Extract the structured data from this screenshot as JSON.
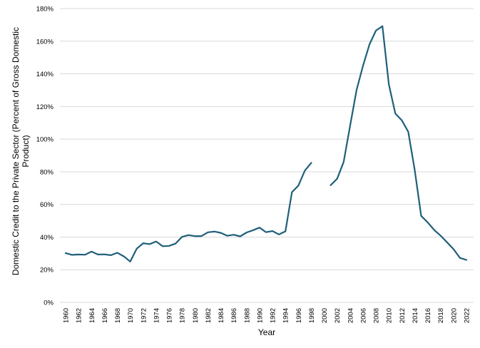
{
  "chart_data": {
    "type": "line",
    "title": "",
    "xlabel": "Year",
    "ylabel": "Domestic Credit to the Private Sector (Percent of Gross Domestic Product)",
    "xlim": [
      1960,
      2022
    ],
    "ylim": [
      0,
      180
    ],
    "ytick_values": [
      0,
      20,
      40,
      60,
      80,
      100,
      120,
      140,
      160,
      180
    ],
    "ytick_labels": [
      "0%",
      "20%",
      "40%",
      "60%",
      "80%",
      "100%",
      "120%",
      "140%",
      "160%",
      "180%"
    ],
    "xtick_values": [
      1960,
      1962,
      1964,
      1966,
      1968,
      1970,
      1972,
      1974,
      1976,
      1978,
      1980,
      1982,
      1984,
      1986,
      1988,
      1990,
      1992,
      1994,
      1996,
      1998,
      2000,
      2002,
      2004,
      2006,
      2008,
      2010,
      2012,
      2014,
      2016,
      2018,
      2020,
      2022
    ],
    "xtick_labels": [
      "1960",
      "1962",
      "1964",
      "1966",
      "1968",
      "1970",
      "1972",
      "1974",
      "1976",
      "1978",
      "1980",
      "1982",
      "1984",
      "1986",
      "1988",
      "1990",
      "1992",
      "1994",
      "1996",
      "1998",
      "2000",
      "2002",
      "2004",
      "2006",
      "2008",
      "2010",
      "2012",
      "2014",
      "2016",
      "2018",
      "2020",
      "2022"
    ],
    "grid": true,
    "legend": "none",
    "series": [
      {
        "color": "#1f5f7a",
        "x": [
          1960,
          1961,
          1962,
          1963,
          1964,
          1965,
          1966,
          1967,
          1968,
          1969,
          1970,
          1971,
          1972,
          1973,
          1974,
          1975,
          1976,
          1977,
          1978,
          1979,
          1980,
          1981,
          1982,
          1983,
          1984,
          1985,
          1986,
          1987,
          1988,
          1989,
          1990,
          1991,
          1992,
          1993,
          1994,
          1995,
          1996,
          1997,
          1998,
          1999,
          2000,
          2001,
          2002,
          2003,
          2004,
          2005,
          2006,
          2007,
          2008,
          2009,
          2010,
          2011,
          2012,
          2013,
          2014,
          2015,
          2016,
          2017,
          2018,
          2019,
          2020,
          2021,
          2022
        ],
        "y": [
          30.2,
          29.1,
          29.3,
          29.2,
          31.1,
          29.3,
          29.4,
          28.9,
          30.4,
          28.2,
          25.0,
          32.9,
          36.2,
          35.7,
          37.3,
          34.4,
          34.6,
          36.0,
          40.1,
          41.2,
          40.6,
          40.6,
          42.9,
          43.4,
          42.6,
          40.8,
          41.4,
          40.4,
          42.8,
          44.2,
          45.8,
          43.0,
          43.7,
          41.6,
          43.5,
          67.5,
          71.5,
          80.7,
          85.5,
          null,
          null,
          71.8,
          75.7,
          86.0,
          108.0,
          130.0,
          145.0,
          158.0,
          166.5,
          169.2,
          133.5,
          115.7,
          111.5,
          104.5,
          81.0,
          53.0,
          49.0,
          44.4,
          40.9,
          36.8,
          32.6,
          27.2,
          26.0
        ]
      }
    ]
  }
}
